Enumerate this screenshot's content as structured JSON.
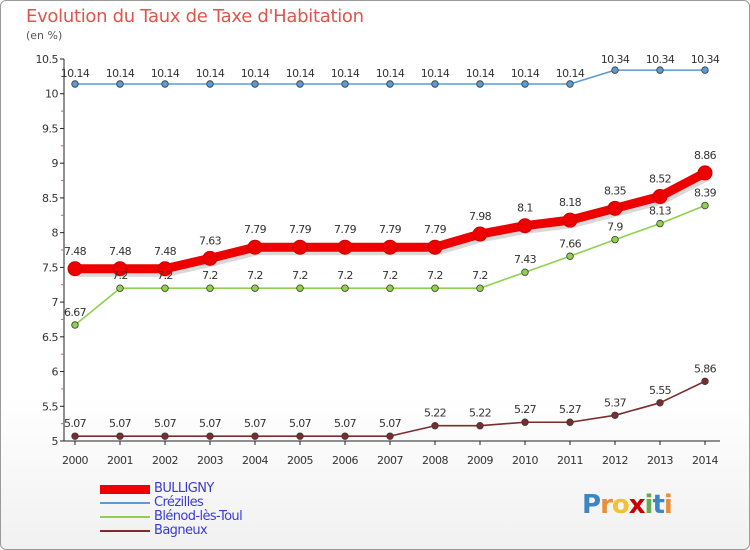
{
  "title": "Evolution du Taux de Taxe d'Habitation",
  "subtitle": "(en %)",
  "chart_data": {
    "type": "line",
    "title": "Evolution du Taux de Taxe d'Habitation",
    "subtitle": "(en %)",
    "xlabel": "",
    "ylabel": "",
    "x": [
      "2000",
      "2001",
      "2002",
      "2003",
      "2004",
      "2005",
      "2006",
      "2007",
      "2008",
      "2009",
      "2010",
      "2011",
      "2012",
      "2013",
      "2014"
    ],
    "ylim": [
      5,
      10.5
    ],
    "yticks": [
      "5",
      "5.5",
      "6",
      "6.5",
      "7",
      "7.5",
      "8",
      "8.5",
      "9",
      "9.5",
      "10",
      "10.5"
    ],
    "grid": false,
    "legend_position": "bottom-left",
    "series": [
      {
        "name": "BULLIGNY",
        "color": "#ee0000",
        "values": [
          7.48,
          7.48,
          7.48,
          7.63,
          7.79,
          7.79,
          7.79,
          7.79,
          7.79,
          7.98,
          8.1,
          8.18,
          8.35,
          8.52,
          8.86
        ],
        "labels": [
          "7.48",
          "7.48",
          "7.48",
          "7.63",
          "7.79",
          "7.79",
          "7.79",
          "7.79",
          "7.79",
          "7.98",
          "8.1",
          "8.18",
          "8.35",
          "8.52",
          "8.86"
        ]
      },
      {
        "name": "Crézilles",
        "color": "#5b9bd5",
        "values": [
          10.14,
          10.14,
          10.14,
          10.14,
          10.14,
          10.14,
          10.14,
          10.14,
          10.14,
          10.14,
          10.14,
          10.14,
          10.34,
          10.34,
          10.34
        ],
        "labels": [
          "10.14",
          "10.14",
          "10.14",
          "10.14",
          "10.14",
          "10.14",
          "10.14",
          "10.14",
          "10.14",
          "10.14",
          "10.14",
          "10.14",
          "10.34",
          "10.34",
          "10.34"
        ]
      },
      {
        "name": "Blénod-lès-Toul",
        "color": "#8fd14f",
        "values": [
          6.67,
          7.2,
          7.2,
          7.2,
          7.2,
          7.2,
          7.2,
          7.2,
          7.2,
          7.2,
          7.43,
          7.66,
          7.9,
          8.13,
          8.39
        ],
        "labels": [
          "6.67",
          "7.2",
          "7.2",
          "7.2",
          "7.2",
          "7.2",
          "7.2",
          "7.2",
          "7.2",
          "7.2",
          "7.43",
          "7.66",
          "7.9",
          "8.13",
          "8.39"
        ]
      },
      {
        "name": "Bagneux",
        "color": "#7b2c2c",
        "values": [
          5.07,
          5.07,
          5.07,
          5.07,
          5.07,
          5.07,
          5.07,
          5.07,
          5.22,
          5.22,
          5.27,
          5.27,
          5.37,
          5.55,
          5.86
        ],
        "labels": [
          "5.07",
          "5.07",
          "5.07",
          "5.07",
          "5.07",
          "5.07",
          "5.07",
          "5.07",
          "5.22",
          "5.22",
          "5.27",
          "5.27",
          "5.37",
          "5.55",
          "5.86"
        ]
      }
    ]
  },
  "logo": {
    "text": "Proxiti",
    "letters": [
      "P",
      "r",
      "o",
      "x",
      "i",
      "t",
      "i"
    ],
    "colors": [
      "#3d85c6",
      "#e69138",
      "#f1c232",
      "#cc0000",
      "#6aa84f",
      "#3d85c6",
      "#e69138"
    ]
  }
}
